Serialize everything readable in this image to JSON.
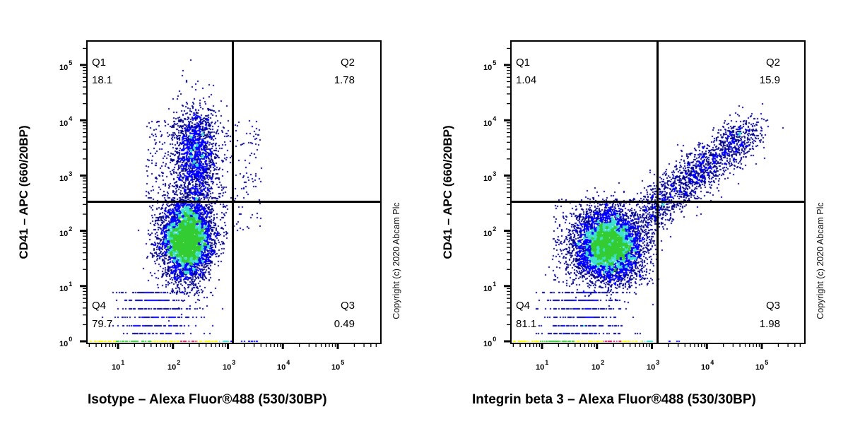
{
  "chart_data": [
    {
      "type": "scatter",
      "subtype": "flow-cytometry-dot-plot",
      "title": "",
      "xlabel": "Isotype – Alexa Fluor®488 (530/30BP)",
      "ylabel": "CD41 – APC (660/20BP)",
      "xscale": "log",
      "yscale": "log",
      "xlim": [
        3,
        800000
      ],
      "ylim": [
        1,
        300000
      ],
      "x_ticks": [
        "10^1",
        "10^2",
        "10^3",
        "10^4",
        "10^5"
      ],
      "y_ticks": [
        "10^0",
        "10^1",
        "10^2",
        "10^3",
        "10^4",
        "10^5"
      ],
      "quadrant_gate": {
        "x": 1400,
        "y": 350
      },
      "quadrants": [
        {
          "name": "Q1",
          "percent": 18.1
        },
        {
          "name": "Q2",
          "percent": 1.78
        },
        {
          "name": "Q3",
          "percent": 0.49
        },
        {
          "name": "Q4",
          "percent": 79.7
        }
      ],
      "population": {
        "center_x": 180,
        "center_y": 80,
        "upper_tail_y": 5000,
        "shape": "vertical"
      },
      "annotation": "Copyright (c) 2020 Abcam Plc",
      "grid": false,
      "legend": null
    },
    {
      "type": "scatter",
      "subtype": "flow-cytometry-dot-plot",
      "title": "",
      "xlabel": "Integrin beta 3 – Alexa Fluor®488 (530/30BP)",
      "ylabel": "CD41 – APC (660/20BP)",
      "xscale": "log",
      "yscale": "log",
      "xlim": [
        3,
        800000
      ],
      "ylim": [
        1,
        300000
      ],
      "x_ticks": [
        "10^1",
        "10^2",
        "10^3",
        "10^4",
        "10^5"
      ],
      "y_ticks": [
        "10^0",
        "10^1",
        "10^2",
        "10^3",
        "10^4",
        "10^5"
      ],
      "quadrant_gate": {
        "x": 1400,
        "y": 350
      },
      "quadrants": [
        {
          "name": "Q1",
          "percent": 1.04
        },
        {
          "name": "Q2",
          "percent": 15.9
        },
        {
          "name": "Q3",
          "percent": 1.98
        },
        {
          "name": "Q4",
          "percent": 81.1
        }
      ],
      "population": {
        "center_x": 200,
        "center_y": 60,
        "diagonal_tail_to": [
          40000,
          8000
        ],
        "shape": "diagonal"
      },
      "annotation": "Copyright (c) 2020 Abcam Plc",
      "grid": false,
      "legend": null
    }
  ],
  "panels": [
    {
      "ylabel": "CD41 – APC (660/20BP)",
      "xlabel": "Isotype – Alexa Fluor®488 (530/30BP)",
      "q1": {
        "name": "Q1",
        "value": "18.1"
      },
      "q2": {
        "name": "Q2",
        "value": "1.78"
      },
      "q3": {
        "name": "Q3",
        "value": "0.49"
      },
      "q4": {
        "name": "Q4",
        "value": "79.7"
      },
      "copyright": "Copyright (c) 2020 Abcam Plc"
    },
    {
      "ylabel": "CD41 – APC (660/20BP)",
      "xlabel": "Integrin beta 3 – Alexa Fluor®488 (530/30BP)",
      "q1": {
        "name": "Q1",
        "value": "1.04"
      },
      "q2": {
        "name": "Q2",
        "value": "15.9"
      },
      "q3": {
        "name": "Q3",
        "value": "1.98"
      },
      "q4": {
        "name": "Q4",
        "value": "81.1"
      },
      "copyright": "Copyright (c) 2020 Abcam Plc"
    }
  ],
  "tick_base": "10",
  "tick_exps": {
    "x": [
      "1",
      "2",
      "3",
      "4",
      "5"
    ],
    "y": [
      "5",
      "4",
      "3",
      "2",
      "1",
      "0"
    ]
  },
  "colors": {
    "dot_low": "#00008b",
    "dot_mid": "#0000ff",
    "dot_cyan": "#40e0d0",
    "dot_green": "#33cc33",
    "dot_yellow": "#ffff00",
    "dot_red": "#d4145a",
    "axis": "#000000"
  }
}
